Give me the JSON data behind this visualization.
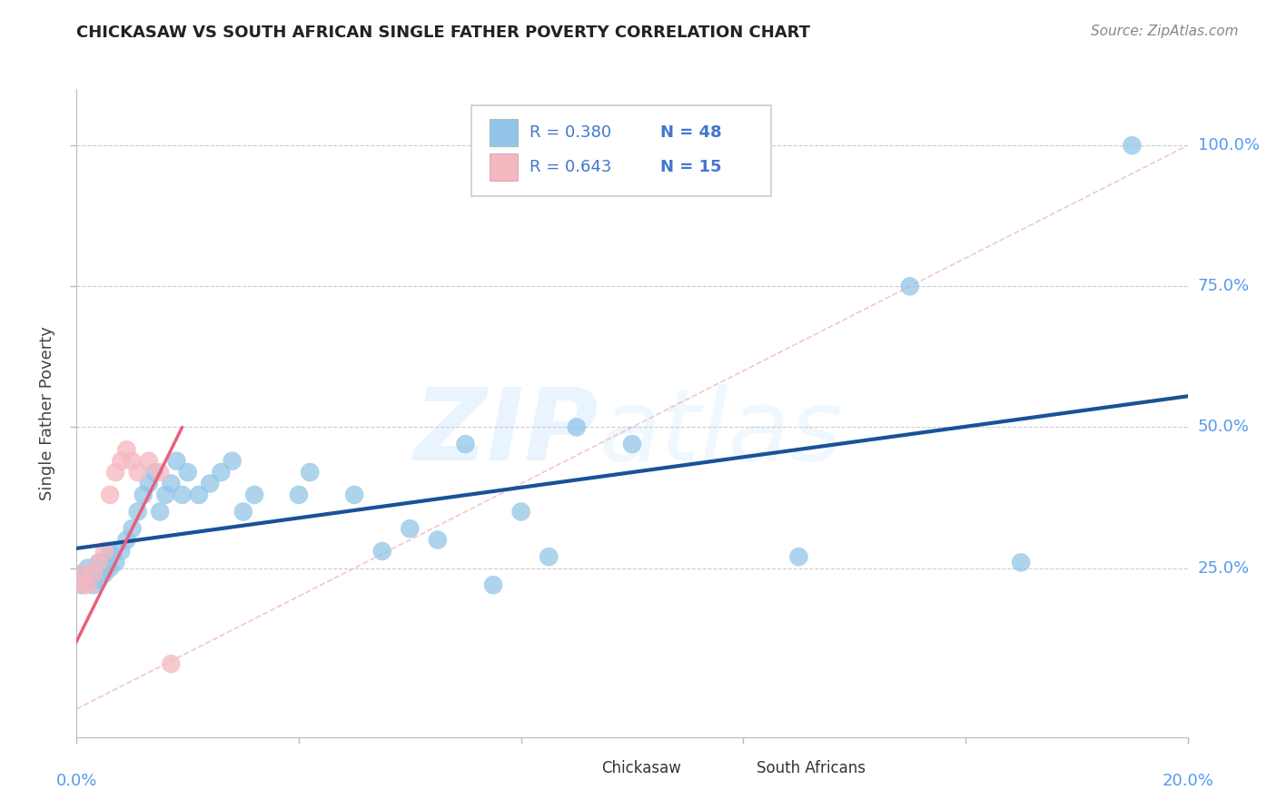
{
  "title": "CHICKASAW VS SOUTH AFRICAN SINGLE FATHER POVERTY CORRELATION CHART",
  "source": "Source: ZipAtlas.com",
  "ylabel": "Single Father Poverty",
  "xlim": [
    0.0,
    0.2
  ],
  "ylim": [
    -0.05,
    1.1
  ],
  "legend_blue_r": "R = 0.380",
  "legend_blue_n": "N = 48",
  "legend_pink_r": "R = 0.643",
  "legend_pink_n": "N = 15",
  "chickasaw_x": [
    0.001,
    0.001,
    0.002,
    0.002,
    0.003,
    0.003,
    0.004,
    0.004,
    0.005,
    0.005,
    0.006,
    0.006,
    0.007,
    0.008,
    0.009,
    0.01,
    0.011,
    0.012,
    0.013,
    0.014,
    0.015,
    0.016,
    0.017,
    0.018,
    0.019,
    0.02,
    0.022,
    0.024,
    0.026,
    0.028,
    0.03,
    0.032,
    0.04,
    0.042,
    0.05,
    0.055,
    0.06,
    0.065,
    0.07,
    0.075,
    0.08,
    0.085,
    0.09,
    0.1,
    0.13,
    0.15,
    0.17,
    0.19
  ],
  "chickasaw_y": [
    0.22,
    0.24,
    0.23,
    0.25,
    0.22,
    0.24,
    0.23,
    0.26,
    0.24,
    0.26,
    0.25,
    0.28,
    0.26,
    0.28,
    0.3,
    0.32,
    0.35,
    0.38,
    0.4,
    0.42,
    0.35,
    0.38,
    0.4,
    0.44,
    0.38,
    0.42,
    0.38,
    0.4,
    0.42,
    0.44,
    0.35,
    0.38,
    0.38,
    0.42,
    0.38,
    0.28,
    0.32,
    0.3,
    0.47,
    0.22,
    0.35,
    0.27,
    0.5,
    0.47,
    0.27,
    0.75,
    0.26,
    1.0
  ],
  "south_african_x": [
    0.001,
    0.001,
    0.002,
    0.003,
    0.004,
    0.005,
    0.006,
    0.007,
    0.008,
    0.009,
    0.01,
    0.011,
    0.013,
    0.015,
    0.017
  ],
  "south_african_y": [
    0.22,
    0.24,
    0.22,
    0.24,
    0.26,
    0.28,
    0.38,
    0.42,
    0.44,
    0.46,
    0.44,
    0.42,
    0.44,
    0.42,
    0.08
  ],
  "blue_line_x": [
    0.0,
    0.2
  ],
  "blue_line_y": [
    0.285,
    0.555
  ],
  "pink_line_x": [
    -0.001,
    0.019
  ],
  "pink_line_y": [
    0.1,
    0.5
  ],
  "diag_line_x": [
    0.0,
    0.2
  ],
  "diag_line_y": [
    0.0,
    1.0
  ],
  "watermark_zip": "ZIP",
  "watermark_atlas": "atlas",
  "blue_color": "#92C5E8",
  "pink_color": "#F5B8C0",
  "blue_line_color": "#1A5296",
  "pink_line_color": "#E8607A",
  "diag_line_color": "#F0B8C0",
  "grid_color": "#CCCCCC",
  "bg_color": "#FFFFFF",
  "title_color": "#222222",
  "source_color": "#888888",
  "axis_label_color": "#5599EE",
  "ylabel_color": "#444444"
}
